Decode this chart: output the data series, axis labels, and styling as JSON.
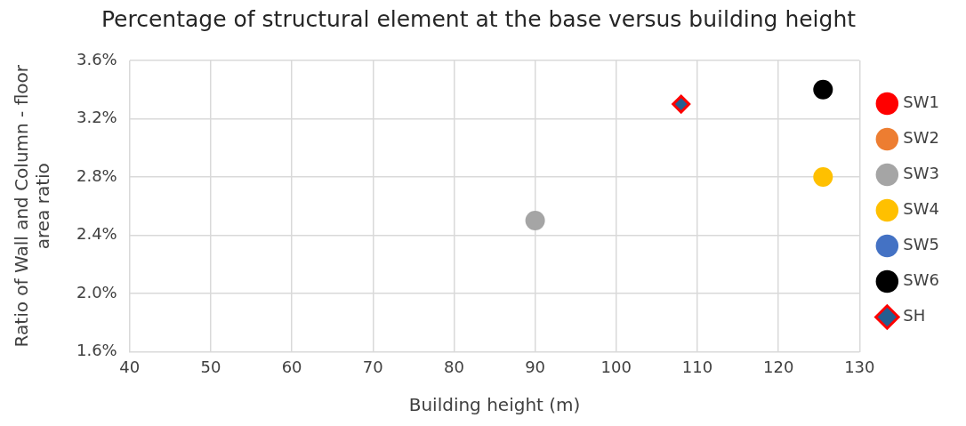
{
  "chart_data": {
    "type": "scatter",
    "title": "Percentage of structural element at the base versus building height",
    "xlabel": "Building height (m)",
    "ylabel": "Ratio of Wall and Column - floor area ratio",
    "xlim": [
      40,
      130
    ],
    "xticks": [
      40,
      50,
      60,
      70,
      80,
      90,
      100,
      110,
      120,
      130
    ],
    "ylim": [
      1.6,
      3.6
    ],
    "yticks": [
      {
        "value": 1.6,
        "label": "1.6%"
      },
      {
        "value": 2.0,
        "label": "2.0%"
      },
      {
        "value": 2.4,
        "label": "2.4%"
      },
      {
        "value": 2.8,
        "label": "2.8%"
      },
      {
        "value": 3.2,
        "label": "3.2%"
      },
      {
        "value": 3.6,
        "label": "3.6%"
      }
    ],
    "grid": true,
    "legend": "right",
    "series": [
      {
        "name": "SW1",
        "color": "#ff0000",
        "marker": "circle",
        "x": [
          null
        ],
        "values": [
          null
        ]
      },
      {
        "name": "SW2",
        "color": "#ed7d31",
        "marker": "circle",
        "x": [
          null
        ],
        "values": [
          null
        ]
      },
      {
        "name": "SW3",
        "color": "#a5a5a5",
        "marker": "circle",
        "x": [
          90
        ],
        "values": [
          2.5
        ]
      },
      {
        "name": "SW4",
        "color": "#ffc000",
        "marker": "circle",
        "x": [
          125.5
        ],
        "values": [
          2.8
        ]
      },
      {
        "name": "SW5",
        "color": "#4472c4",
        "marker": "circle",
        "x": [
          null
        ],
        "values": [
          null
        ]
      },
      {
        "name": "SW6",
        "color": "#000000",
        "marker": "circle",
        "x": [
          125.5
        ],
        "values": [
          3.4
        ]
      },
      {
        "name": "SH",
        "color": "#255e91",
        "marker": "diamond",
        "x": [
          108
        ],
        "values": [
          3.3
        ]
      }
    ]
  }
}
